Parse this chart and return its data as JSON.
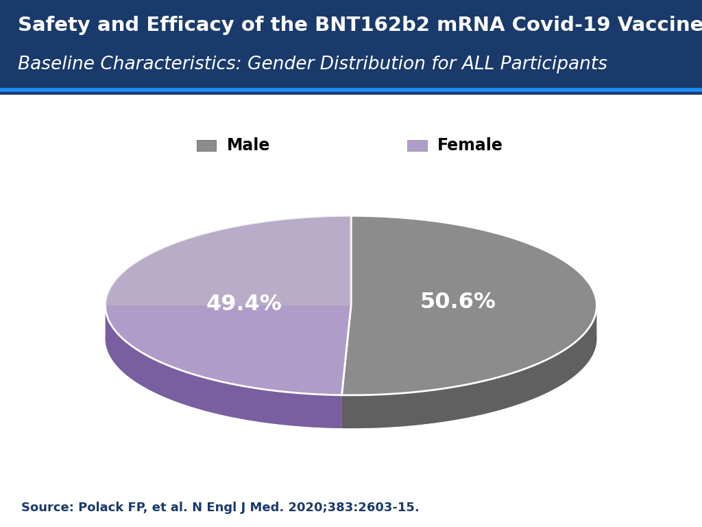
{
  "title_line1": "Safety and Efficacy of the BNT162b2 mRNA Covid-19 Vaccine",
  "title_line2": "Baseline Characteristics: Gender Distribution for ALL Participants",
  "header_bg_color": "#1a3a6b",
  "header_text_color": "#ffffff",
  "slices": [
    {
      "label": "Male",
      "pct": 50.6,
      "color_top": "#8c8c8c",
      "color_side": "#606060"
    },
    {
      "label": "Female",
      "pct": 49.4,
      "color_top": "#b09cc8",
      "color_side": "#7a5fa0"
    }
  ],
  "legend_colors": [
    "#8c8c8c",
    "#b09cc8"
  ],
  "legend_labels": [
    "Male",
    "Female"
  ],
  "pct_labels": [
    "50.6%",
    "49.4%"
  ],
  "pct_label_color": "#ffffff",
  "source_text": "Source: Polack FP, et al. N Engl J Med. 2020;383:2603-15.",
  "source_color": "#1a3a6b",
  "bg_color": "#ffffff",
  "accent_line_color": "#1e90ff"
}
